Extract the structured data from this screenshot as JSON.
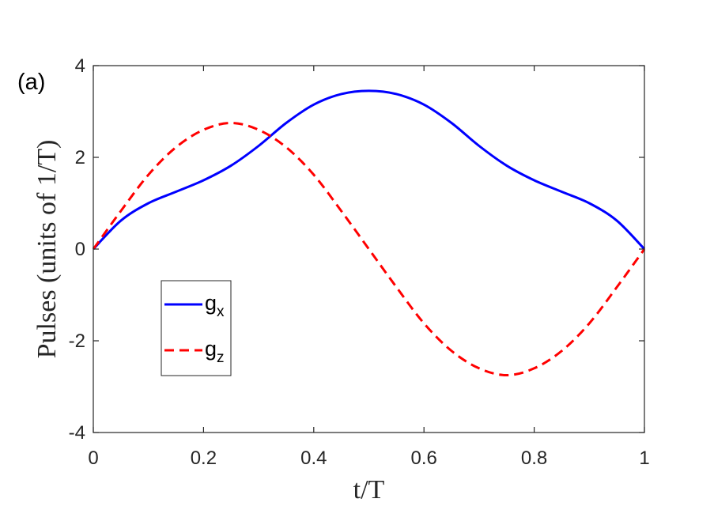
{
  "chart_data": {
    "type": "line",
    "panel_label": "(a)",
    "xlabel": "t/T",
    "ylabel": "Pulses  (units of 1/T)",
    "xlim": [
      0,
      1
    ],
    "ylim": [
      -4,
      4
    ],
    "xticks": [
      "0",
      "0.2",
      "0.4",
      "0.6",
      "0.8",
      "1"
    ],
    "yticks": [
      "-4",
      "-2",
      "0",
      "2",
      "4"
    ],
    "grid": false,
    "legend_position": "lower-left",
    "series": [
      {
        "name": "g",
        "subscript": "x",
        "color": "#0000ff",
        "style": "solid",
        "x": [
          0,
          0.05,
          0.1,
          0.15,
          0.2,
          0.25,
          0.3,
          0.35,
          0.4,
          0.45,
          0.5,
          0.55,
          0.6,
          0.65,
          0.7,
          0.75,
          0.8,
          0.85,
          0.9,
          0.95,
          1
        ],
        "y": [
          0,
          0.62,
          1.0,
          1.25,
          1.5,
          1.82,
          2.25,
          2.75,
          3.15,
          3.38,
          3.45,
          3.38,
          3.15,
          2.75,
          2.25,
          1.82,
          1.5,
          1.25,
          1.0,
          0.62,
          0
        ]
      },
      {
        "name": "g",
        "subscript": "z",
        "color": "#ff0000",
        "style": "dashed",
        "x": [
          0,
          0.05,
          0.1,
          0.15,
          0.2,
          0.25,
          0.3,
          0.35,
          0.4,
          0.45,
          0.5,
          0.55,
          0.6,
          0.65,
          0.7,
          0.75,
          0.8,
          0.85,
          0.9,
          0.95,
          1
        ],
        "y": [
          0,
          0.83,
          1.62,
          2.22,
          2.6,
          2.75,
          2.6,
          2.22,
          1.62,
          0.83,
          0,
          -0.83,
          -1.62,
          -2.22,
          -2.6,
          -2.75,
          -2.6,
          -2.22,
          -1.62,
          -0.83,
          0
        ]
      }
    ]
  }
}
